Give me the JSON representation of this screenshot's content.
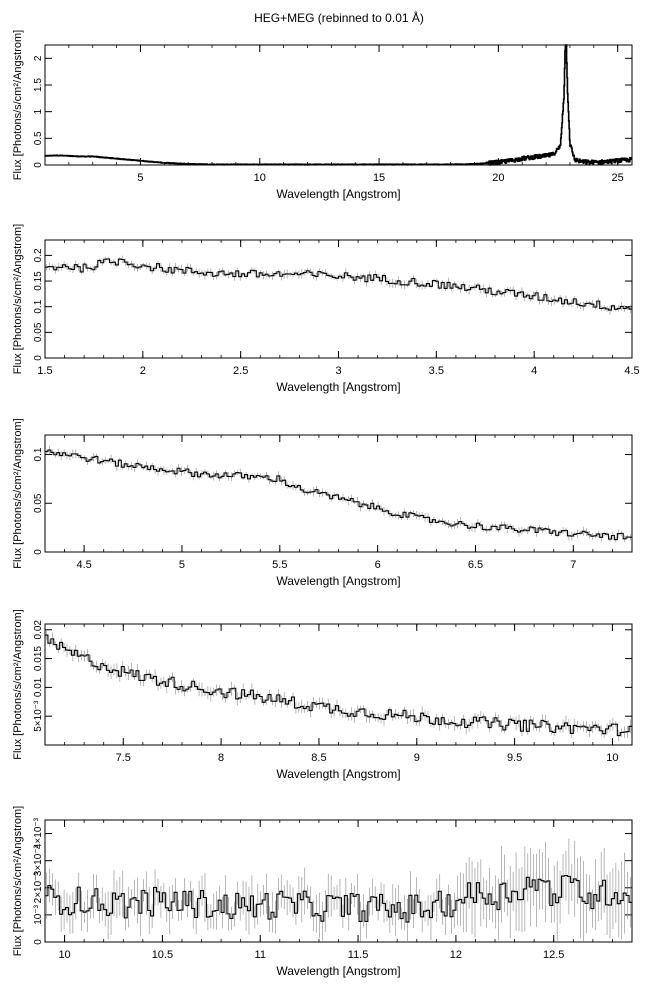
{
  "title": "HEG+MEG (rebinned to 0.01 Å)",
  "colors": {
    "data": "#000000",
    "errorbar": "#888888",
    "axis": "#000000"
  },
  "chart_data": [
    {
      "type": "line",
      "xlabel": "Wavelength [Angstrom]",
      "ylabel": "Flux [Photons/s/cm²/Angstrom]",
      "xlim": [
        1.0,
        25.6
      ],
      "ylim": [
        0,
        2.25
      ],
      "xticks": [
        5,
        10,
        15,
        20,
        25
      ],
      "xtick_labels": [
        "5",
        "10",
        "15",
        "20",
        "25"
      ],
      "yticks": [
        0,
        0.5,
        1,
        1.5,
        2
      ],
      "ytick_labels": [
        "0",
        "0.5",
        "1",
        "1.5",
        "2"
      ],
      "x": [
        1.0,
        1.5,
        2.0,
        2.5,
        3.0,
        3.5,
        4.0,
        4.5,
        5.0,
        5.5,
        6.0,
        6.5,
        7.0,
        8.0,
        9.0,
        10.0,
        12.0,
        14.0,
        16.0,
        18.0,
        19.0,
        19.5,
        20.0,
        20.5,
        21.0,
        21.5,
        22.0,
        22.3,
        22.6,
        22.75,
        22.8,
        22.85,
        22.9,
        23.0,
        23.2,
        23.5,
        24.0,
        24.5,
        25.0,
        25.6
      ],
      "y": [
        0.17,
        0.18,
        0.17,
        0.16,
        0.16,
        0.14,
        0.12,
        0.1,
        0.08,
        0.06,
        0.04,
        0.03,
        0.02,
        0.01,
        0.01,
        0.01,
        0.01,
        0.01,
        0.01,
        0.01,
        0.02,
        0.03,
        0.05,
        0.08,
        0.12,
        0.15,
        0.17,
        0.2,
        0.35,
        1.3,
        2.2,
        2.25,
        1.4,
        0.4,
        0.1,
        0.06,
        0.05,
        0.06,
        0.08,
        0.1
      ]
    },
    {
      "type": "line",
      "xlabel": "Wavelength [Angstrom]",
      "ylabel": "Flux [Photons/s/cm²/Angstrom]",
      "xlim": [
        1.5,
        4.5
      ],
      "ylim": [
        0,
        0.23
      ],
      "xticks": [
        1.5,
        2,
        2.5,
        3,
        3.5,
        4,
        4.5
      ],
      "xtick_labels": [
        "1.5",
        "2",
        "2.5",
        "3",
        "3.5",
        "4",
        "4.5"
      ],
      "yticks": [
        0,
        0.05,
        0.1,
        0.15,
        0.2
      ],
      "ytick_labels": [
        "0",
        "0.05",
        "0.1",
        "0.15",
        "0.2"
      ],
      "x": [
        1.5,
        1.6,
        1.7,
        1.8,
        1.9,
        2.0,
        2.2,
        2.4,
        2.6,
        2.8,
        3.0,
        3.2,
        3.4,
        3.6,
        3.8,
        4.0,
        4.2,
        4.4,
        4.5
      ],
      "y": [
        0.175,
        0.18,
        0.175,
        0.185,
        0.19,
        0.18,
        0.17,
        0.165,
        0.163,
        0.163,
        0.16,
        0.155,
        0.148,
        0.14,
        0.13,
        0.12,
        0.11,
        0.1,
        0.098
      ]
    },
    {
      "type": "line",
      "xlabel": "Wavelength [Angstrom]",
      "ylabel": "Flux [Photons/s/cm²/Angstrom]",
      "xlim": [
        4.3,
        7.3
      ],
      "ylim": [
        0,
        0.12
      ],
      "xticks": [
        4.5,
        5,
        5.5,
        6,
        6.5,
        7
      ],
      "xtick_labels": [
        "4.5",
        "5",
        "5.5",
        "6",
        "6.5",
        "7"
      ],
      "yticks": [
        0,
        0.05,
        0.1
      ],
      "ytick_labels": [
        "0",
        "0.05",
        "0.1"
      ],
      "x": [
        4.3,
        4.5,
        4.7,
        4.9,
        5.1,
        5.3,
        5.5,
        5.6,
        5.8,
        6.0,
        6.2,
        6.4,
        6.6,
        6.8,
        7.0,
        7.2,
        7.3
      ],
      "y": [
        0.104,
        0.097,
        0.09,
        0.085,
        0.08,
        0.078,
        0.075,
        0.065,
        0.055,
        0.045,
        0.035,
        0.029,
        0.025,
        0.022,
        0.019,
        0.016,
        0.015
      ]
    },
    {
      "type": "line",
      "xlabel": "Wavelength [Angstrom]",
      "ylabel": "Flux [Photons/s/cm²/Angstrom]",
      "xlim": [
        7.1,
        10.1
      ],
      "ylim": [
        0,
        0.021
      ],
      "xticks": [
        7.5,
        8,
        8.5,
        9,
        9.5,
        10
      ],
      "xtick_labels": [
        "7.5",
        "8",
        "8.5",
        "9",
        "9.5",
        "10"
      ],
      "yticks": [
        0.005,
        0.01,
        0.015,
        0.02
      ],
      "ytick_labels": [
        "5×10⁻³",
        "0.01",
        "0.015",
        "0.02"
      ],
      "x": [
        7.1,
        7.2,
        7.3,
        7.4,
        7.5,
        7.6,
        7.8,
        8.0,
        8.2,
        8.4,
        8.6,
        8.8,
        9.0,
        9.2,
        9.4,
        9.6,
        9.8,
        10.1
      ],
      "y": [
        0.0182,
        0.0165,
        0.015,
        0.0138,
        0.0127,
        0.0118,
        0.0105,
        0.0093,
        0.0083,
        0.0072,
        0.0062,
        0.0055,
        0.0048,
        0.0042,
        0.0037,
        0.0033,
        0.003,
        0.0026
      ]
    },
    {
      "type": "line",
      "xlabel": "Wavelength [Angstrom]",
      "ylabel": "Flux [Photons/s/cm²/Angstrom]",
      "xlim": [
        9.9,
        12.9
      ],
      "ylim": [
        0,
        0.0045
      ],
      "xticks": [
        10,
        10.5,
        11,
        11.5,
        12,
        12.5
      ],
      "xtick_labels": [
        "10",
        "10.5",
        "11",
        "11.5",
        "12",
        "12.5"
      ],
      "yticks": [
        0,
        0.001,
        0.002,
        0.003,
        0.004
      ],
      "ytick_labels": [
        "0",
        "10⁻³",
        "2×10⁻³",
        "3×10⁻³",
        "4×10⁻³"
      ],
      "x": [
        9.9,
        10.1,
        10.3,
        10.5,
        10.7,
        10.9,
        11.1,
        11.3,
        11.5,
        11.7,
        11.9,
        12.0,
        12.1,
        12.2,
        12.3,
        12.4,
        12.5,
        12.6,
        12.7,
        12.8,
        12.9
      ],
      "y": [
        0.0016,
        0.0015,
        0.0014,
        0.0015,
        0.0014,
        0.0013,
        0.0014,
        0.0013,
        0.0013,
        0.0012,
        0.0013,
        0.0015,
        0.0018,
        0.0017,
        0.0019,
        0.0022,
        0.0018,
        0.0021,
        0.0016,
        0.0019,
        0.0018
      ]
    }
  ]
}
